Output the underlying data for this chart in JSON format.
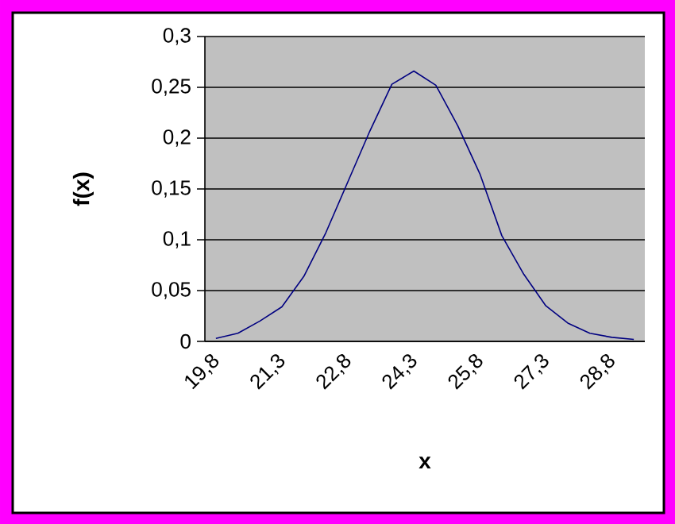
{
  "chart_data": {
    "type": "line",
    "xlabel": "x",
    "ylabel": "f(x)",
    "categories": [
      "19,8",
      null,
      null,
      "21,3",
      null,
      null,
      "22,8",
      null,
      null,
      "24,3",
      null,
      null,
      "25,8",
      null,
      null,
      "27,3",
      null,
      null,
      "28,8",
      null
    ],
    "series": [
      {
        "color": "#000080",
        "values": [
          0.003,
          0.008,
          0.02,
          0.034,
          0.064,
          0.107,
          0.157,
          0.207,
          0.253,
          0.266,
          0.252,
          0.212,
          0.165,
          0.104,
          0.066,
          0.035,
          0.018,
          0.008,
          0.004,
          0.002
        ]
      }
    ],
    "ylim": [
      0,
      0.3
    ],
    "yticks": [
      {
        "value": 0,
        "label": "0"
      },
      {
        "value": 0.05,
        "label": "0,05"
      },
      {
        "value": 0.1,
        "label": "0,1"
      },
      {
        "value": 0.15,
        "label": "0,15"
      },
      {
        "value": 0.2,
        "label": "0,2"
      },
      {
        "value": 0.25,
        "label": "0,25"
      },
      {
        "value": 0.3,
        "label": "0,3"
      }
    ],
    "grid": "y",
    "marker": "none"
  }
}
